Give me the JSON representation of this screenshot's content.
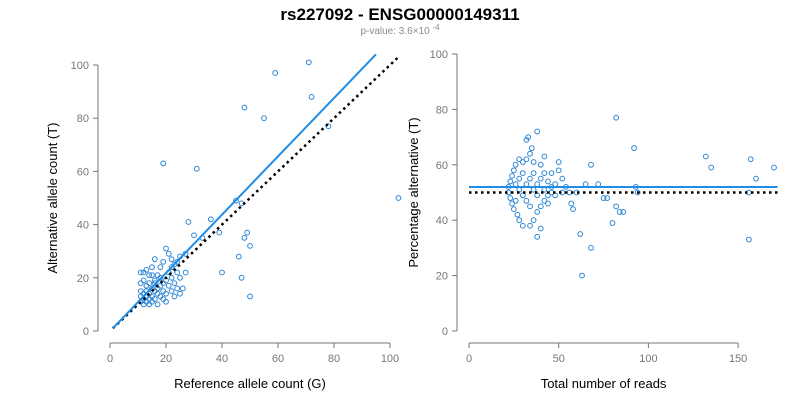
{
  "page": {
    "title": "rs227092 - ENSG00000149311",
    "subtitle_prefix": "p-value: 3.6×10",
    "subtitle_exponent": "-4"
  },
  "colors": {
    "points": "#2e86d6",
    "fit_line": "#1f8ce6",
    "reference_line": "#000000",
    "axis": "#777777"
  },
  "chart_data": [
    {
      "type": "scatter",
      "xlabel": "Reference allele count (G)",
      "ylabel": "Alternative allele count (T)",
      "xlim": [
        0,
        100
      ],
      "ylim": [
        0,
        100
      ],
      "xticks": [
        0,
        20,
        40,
        60,
        80,
        100
      ],
      "yticks": [
        0,
        20,
        40,
        60,
        80,
        100
      ],
      "fit_line": [
        [
          1,
          1
        ],
        [
          95,
          104
        ]
      ],
      "reference_line": [
        [
          1,
          1
        ],
        [
          103,
          103
        ]
      ],
      "points": [
        [
          71,
          101
        ],
        [
          59,
          97
        ],
        [
          48,
          84
        ],
        [
          72,
          88
        ],
        [
          55,
          80
        ],
        [
          78,
          77
        ],
        [
          19,
          63
        ],
        [
          31,
          61
        ],
        [
          103,
          50
        ],
        [
          45,
          49
        ],
        [
          47,
          48
        ],
        [
          36,
          42
        ],
        [
          39,
          37
        ],
        [
          49,
          37
        ],
        [
          48,
          35
        ],
        [
          28,
          41
        ],
        [
          50,
          32
        ],
        [
          46,
          28
        ],
        [
          47,
          20
        ],
        [
          40,
          22
        ],
        [
          50,
          13
        ],
        [
          30,
          36
        ],
        [
          33,
          35
        ],
        [
          20,
          31
        ],
        [
          21,
          29
        ],
        [
          25,
          28
        ],
        [
          27,
          29
        ],
        [
          23,
          25
        ],
        [
          22,
          24
        ],
        [
          19,
          26
        ],
        [
          24,
          22
        ],
        [
          16,
          27
        ],
        [
          15,
          24
        ],
        [
          13,
          23
        ],
        [
          11,
          22
        ],
        [
          12,
          22
        ],
        [
          14,
          21
        ],
        [
          17,
          21
        ],
        [
          18,
          20
        ],
        [
          20,
          19
        ],
        [
          22,
          20
        ],
        [
          25,
          20
        ],
        [
          12,
          19
        ],
        [
          14,
          18
        ],
        [
          16,
          18
        ],
        [
          18,
          17
        ],
        [
          13,
          17
        ],
        [
          15,
          16
        ],
        [
          17,
          16
        ],
        [
          21,
          17
        ],
        [
          24,
          16
        ],
        [
          26,
          16
        ],
        [
          11,
          15
        ],
        [
          13,
          15
        ],
        [
          16,
          15
        ],
        [
          19,
          15
        ],
        [
          22,
          15
        ],
        [
          12,
          14
        ],
        [
          14,
          14
        ],
        [
          17,
          14
        ],
        [
          20,
          14
        ],
        [
          25,
          14
        ],
        [
          11,
          13
        ],
        [
          13,
          13
        ],
        [
          15,
          13
        ],
        [
          18,
          13
        ],
        [
          23,
          13
        ],
        [
          12,
          12
        ],
        [
          14,
          12
        ],
        [
          16,
          12
        ],
        [
          19,
          12
        ],
        [
          11,
          11
        ],
        [
          13,
          11
        ],
        [
          15,
          11
        ],
        [
          17,
          10
        ],
        [
          20,
          11
        ],
        [
          12,
          10
        ],
        [
          14,
          10
        ],
        [
          16,
          19
        ],
        [
          18,
          24
        ],
        [
          21,
          22
        ],
        [
          23,
          18
        ],
        [
          15,
          21
        ],
        [
          27,
          22
        ],
        [
          24,
          26
        ],
        [
          22,
          27
        ],
        [
          11,
          18
        ],
        [
          19,
          18
        ]
      ]
    },
    {
      "type": "scatter",
      "xlabel": "Total number of reads",
      "ylabel": "Percentage alternative (T)",
      "xlim": [
        0,
        170
      ],
      "ylim": [
        0,
        100
      ],
      "xticks": [
        0,
        50,
        100,
        150
      ],
      "yticks": [
        0,
        20,
        40,
        60,
        80,
        100
      ],
      "fit_line": [
        [
          0,
          52
        ],
        [
          172,
          52
        ]
      ],
      "reference_line": [
        [
          0,
          50
        ],
        [
          172,
          50
        ]
      ],
      "points": [
        [
          38,
          72
        ],
        [
          33,
          70
        ],
        [
          32,
          69
        ],
        [
          35,
          66
        ],
        [
          34,
          64
        ],
        [
          82,
          77
        ],
        [
          92,
          66
        ],
        [
          132,
          63
        ],
        [
          135,
          59
        ],
        [
          157,
          62
        ],
        [
          170,
          59
        ],
        [
          160,
          55
        ],
        [
          156,
          50
        ],
        [
          156,
          33
        ],
        [
          93,
          52
        ],
        [
          94,
          50
        ],
        [
          72,
          53
        ],
        [
          68,
          60
        ],
        [
          62,
          35
        ],
        [
          63,
          20
        ],
        [
          68,
          30
        ],
        [
          75,
          48
        ],
        [
          77,
          48
        ],
        [
          82,
          45
        ],
        [
          84,
          43
        ],
        [
          86,
          43
        ],
        [
          80,
          39
        ],
        [
          26,
          60
        ],
        [
          28,
          62
        ],
        [
          30,
          61
        ],
        [
          32,
          62
        ],
        [
          36,
          61
        ],
        [
          40,
          60
        ],
        [
          42,
          63
        ],
        [
          46,
          57
        ],
        [
          50,
          58
        ],
        [
          50,
          61
        ],
        [
          52,
          55
        ],
        [
          54,
          52
        ],
        [
          56,
          50
        ],
        [
          57,
          46
        ],
        [
          58,
          44
        ],
        [
          60,
          50
        ],
        [
          65,
          53
        ],
        [
          48,
          53
        ],
        [
          46,
          50
        ],
        [
          44,
          49
        ],
        [
          42,
          47
        ],
        [
          40,
          45
        ],
        [
          38,
          43
        ],
        [
          36,
          40
        ],
        [
          34,
          38
        ],
        [
          38,
          34
        ],
        [
          40,
          37
        ],
        [
          30,
          38
        ],
        [
          28,
          40
        ],
        [
          27,
          42
        ],
        [
          25,
          44
        ],
        [
          24,
          46
        ],
        [
          23,
          48
        ],
        [
          22,
          50
        ],
        [
          22,
          52
        ],
        [
          23,
          54
        ],
        [
          24,
          56
        ],
        [
          25,
          58
        ],
        [
          26,
          53
        ],
        [
          28,
          51
        ],
        [
          30,
          49
        ],
        [
          32,
          47
        ],
        [
          34,
          45
        ],
        [
          36,
          51
        ],
        [
          38,
          53
        ],
        [
          40,
          55
        ],
        [
          42,
          57
        ],
        [
          44,
          54
        ],
        [
          46,
          52
        ],
        [
          48,
          49
        ],
        [
          44,
          46
        ],
        [
          38,
          49
        ],
        [
          34,
          55
        ],
        [
          30,
          57
        ],
        [
          28,
          55
        ],
        [
          26,
          47
        ],
        [
          32,
          53
        ],
        [
          36,
          57
        ],
        [
          42,
          51
        ],
        [
          52,
          50
        ]
      ]
    }
  ]
}
